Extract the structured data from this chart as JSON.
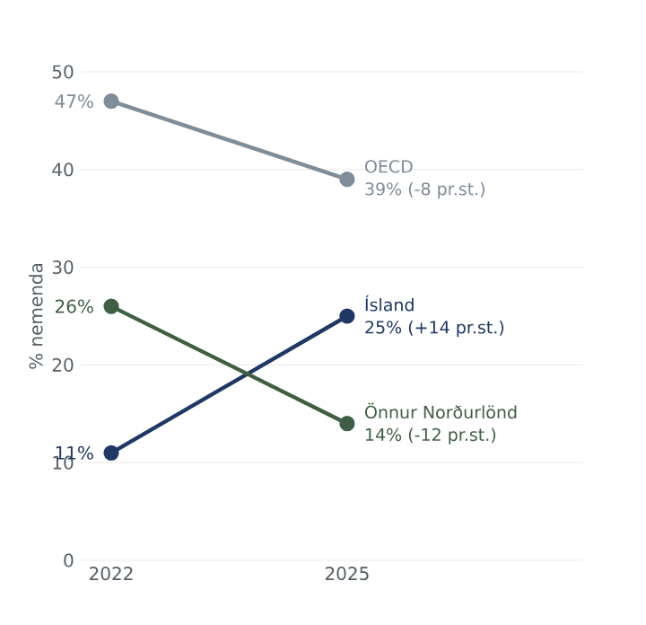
{
  "chart_data": {
    "type": "line",
    "ylabel": "% nemenda",
    "categories": [
      "2022",
      "2025"
    ],
    "ylim": [
      0,
      50
    ],
    "yticks": [
      0,
      10,
      20,
      30,
      40,
      50
    ],
    "grid": "y",
    "marker": "circle",
    "line_style": "solid",
    "series": [
      {
        "name": "OECD",
        "color": "#7f8c99",
        "values": [
          47,
          39
        ],
        "value_labels": [
          "47%",
          "39% (-8 pr.st.)"
        ]
      },
      {
        "name": "Ísland",
        "color": "#1f3864",
        "values": [
          11,
          25
        ],
        "value_labels": [
          "11%",
          "25% (+14 pr.st.)"
        ]
      },
      {
        "name": "Önnur Norðurlönd",
        "color": "#3f5f45",
        "values": [
          26,
          14
        ],
        "value_labels": [
          "26%",
          "14% (-12 pr.st.)"
        ]
      }
    ]
  }
}
